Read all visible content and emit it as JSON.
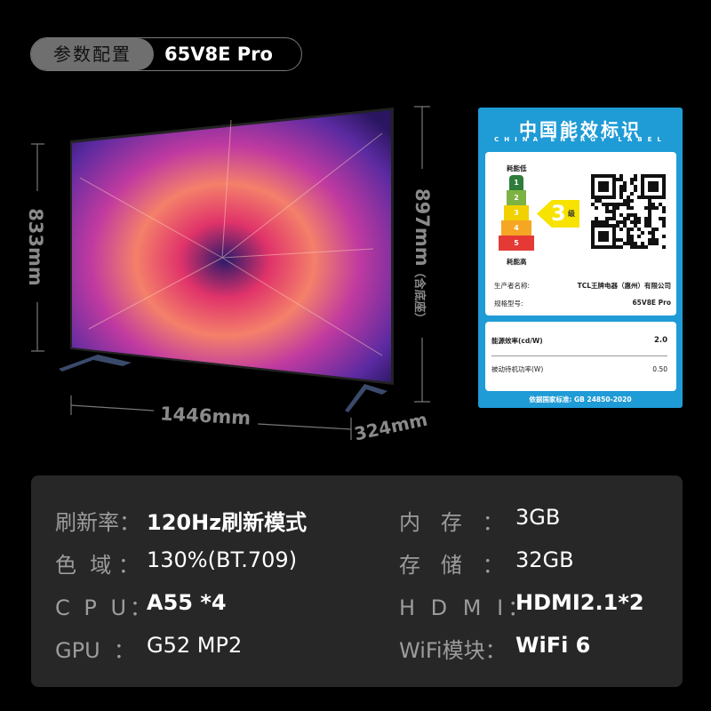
{
  "header": {
    "section": "参数配置",
    "model": "65V8E Pro"
  },
  "dimensions": {
    "width": "1446mm",
    "depth": "324mm",
    "height": "833mm",
    "height_with_stand": "897mm",
    "with_stand_note": "（含底座）"
  },
  "energy_label": {
    "title": "中国能效标识",
    "subtitle": "CHINA ENERGY LABEL",
    "low": "耗能低",
    "high": "耗能高",
    "grades": [
      "1",
      "2",
      "3",
      "4",
      "5"
    ],
    "grade_colors": [
      "#2e7d3a",
      "#7cb342",
      "#f1d100",
      "#f5a623",
      "#e53935"
    ],
    "current_grade": "3",
    "grade_suffix": "级",
    "maker_label": "生产者名称:",
    "maker": "TCL王牌电器（惠州）有限公司",
    "model_label": "规格型号:",
    "model": "65V8E Pro",
    "efficiency_label": "能源效率(cd/W)",
    "efficiency": "2.0",
    "standby_label": "被动待机功率(W)",
    "standby": "0.50",
    "standard": "依据国家标准: GB 24850-2020"
  },
  "specs": [
    {
      "label": "刷新率：",
      "value": "120Hz刷新模式"
    },
    {
      "label": "色  域 ：",
      "value": "130%(BT.709)"
    },
    {
      "label": "C P U：",
      "value": "A55 *4"
    },
    {
      "label": "GPU  ：",
      "value": "G52 MP2"
    },
    {
      "label": "内   存   ：",
      "value": "3GB"
    },
    {
      "label": "存   储   ：",
      "value": "32GB"
    },
    {
      "label": "H D M I：",
      "value": "HDMI2.1*2"
    },
    {
      "label": "WiFi模块：",
      "value": "WiFi 6"
    }
  ]
}
